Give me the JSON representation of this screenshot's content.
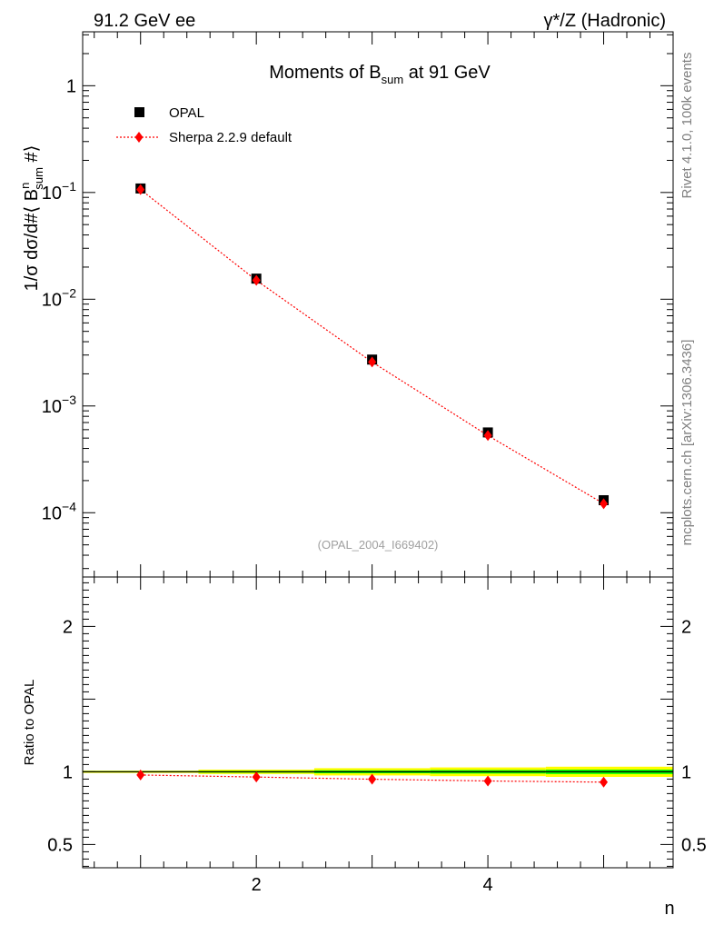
{
  "header": {
    "left": "91.2 GeV ee",
    "right": "γ*/Z (Hadronic)"
  },
  "side_labels": {
    "rivet": "Rivet 4.1.0,  100k events",
    "mcplots": "mcplots.cern.ch [arXiv:1306.3436]"
  },
  "watermark": "(OPAL_2004_I669402)",
  "chart_data": [
    {
      "type": "scatter",
      "title": "Moments of B_sum at 91 GeV",
      "xlabel": "n",
      "ylabel": "1/σ  dσ/d#⟨ B^n_sum #⟩",
      "yscale": "log",
      "xlim": [
        0.5,
        5.6
      ],
      "ylim": [
        2.5e-05,
        3.2
      ],
      "x_tick_labels": [
        "2",
        "4"
      ],
      "y_tick_labels": [
        "10^-4",
        "10^-3",
        "10^-2",
        "10^-1",
        "1"
      ],
      "legend": [
        "OPAL",
        "Sherpa 2.2.9 default"
      ],
      "legend_position": "top-left",
      "series": [
        {
          "name": "OPAL",
          "marker": "square",
          "color": "#000000",
          "x": [
            1,
            2,
            3,
            4,
            5
          ],
          "y": [
            0.109,
            0.0156,
            0.00272,
            0.000565,
            0.000131
          ]
        },
        {
          "name": "Sherpa 2.2.9 default",
          "marker": "diamond",
          "color": "#ff0000",
          "line": "dotted",
          "x": [
            1,
            2,
            3,
            4,
            5
          ],
          "y": [
            0.1065,
            0.01504,
            0.00258,
            0.000529,
            0.0001215
          ]
        }
      ]
    },
    {
      "type": "scatter",
      "title": "",
      "xlabel": "n",
      "ylabel": "Ratio to OPAL",
      "xlim": [
        0.5,
        5.6
      ],
      "ylim": [
        0.34,
        2.34
      ],
      "x_tick_labels": [
        "2",
        "4"
      ],
      "y_tick_labels": [
        "0.5",
        "1",
        "2"
      ],
      "reference_line": 1,
      "band_colors": {
        "inner": "#00ff00",
        "outer": "#ffff00"
      },
      "band": [
        {
          "x_range": [
            0.5,
            1.5
          ],
          "inner": 0.004,
          "outer": 0.008
        },
        {
          "x_range": [
            1.5,
            2.5
          ],
          "inner": 0.006,
          "outer": 0.015
        },
        {
          "x_range": [
            2.5,
            3.5
          ],
          "inner": 0.01,
          "outer": 0.025
        },
        {
          "x_range": [
            3.5,
            4.5
          ],
          "inner": 0.012,
          "outer": 0.03
        },
        {
          "x_range": [
            4.5,
            5.6
          ],
          "inner": 0.015,
          "outer": 0.035
        }
      ],
      "series": [
        {
          "name": "Sherpa 2.2.9 default",
          "marker": "diamond",
          "color": "#ff0000",
          "line": "dotted",
          "x": [
            1,
            2,
            3,
            4,
            5
          ],
          "y": [
            0.978,
            0.964,
            0.949,
            0.937,
            0.929
          ]
        }
      ]
    }
  ]
}
